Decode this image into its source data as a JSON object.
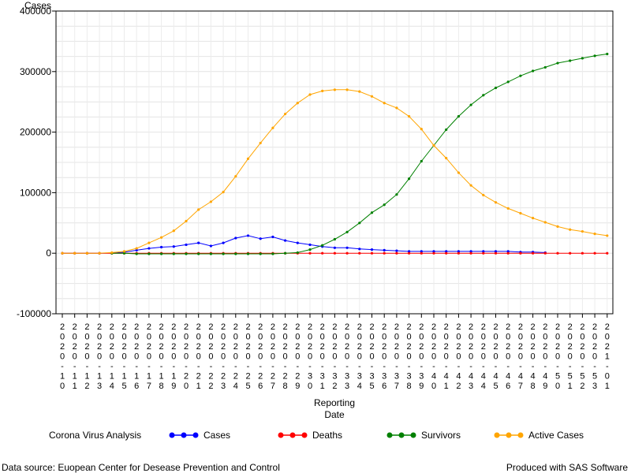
{
  "chart_data": {
    "type": "line",
    "ylabel": "Cases",
    "xlabel_lines": [
      "Reporting",
      "Date"
    ],
    "ylim": [
      -100000,
      400000
    ],
    "yticks": [
      -100000,
      0,
      100000,
      200000,
      300000,
      400000
    ],
    "ytick_labels": [
      "-100000",
      "0",
      "100000",
      "200000",
      "300000",
      "400000"
    ],
    "grid": true,
    "x": [
      "2020-10",
      "2020-11",
      "2020-12",
      "2020-13",
      "2020-14",
      "2020-15",
      "2020-16",
      "2020-17",
      "2020-18",
      "2020-19",
      "2020-20",
      "2020-21",
      "2020-22",
      "2020-23",
      "2020-24",
      "2020-25",
      "2020-26",
      "2020-27",
      "2020-28",
      "2020-29",
      "2020-30",
      "2020-31",
      "2020-32",
      "2020-33",
      "2020-34",
      "2020-35",
      "2020-36",
      "2020-37",
      "2020-38",
      "2020-39",
      "2020-40",
      "2020-41",
      "2020-42",
      "2020-43",
      "2020-44",
      "2020-45",
      "2020-46",
      "2020-47",
      "2020-48",
      "2020-49",
      "2020-50",
      "2020-51",
      "2020-52",
      "2020-53",
      "2021-01"
    ],
    "legend_title": "Corona Virus Analysis",
    "series": [
      {
        "name": "Cases",
        "color": "#0000ff",
        "values": [
          0,
          0,
          0,
          0,
          200,
          1500,
          5000,
          8000,
          10000,
          11000,
          14000,
          17000,
          12000,
          17000,
          25000,
          29000,
          24000,
          27000,
          21000,
          17000,
          14000,
          11000,
          9000,
          9000,
          7000,
          6000,
          5000,
          4000,
          3000,
          3000,
          3000,
          3000,
          3000,
          3000,
          3000,
          3000,
          3000,
          2000,
          2000,
          1000,
          null,
          null,
          null,
          null,
          null
        ]
      },
      {
        "name": "Deaths",
        "color": "#ff0000",
        "values": [
          0,
          0,
          0,
          0,
          0,
          0,
          0,
          0,
          0,
          0,
          0,
          0,
          0,
          0,
          0,
          0,
          0,
          0,
          0,
          0,
          0,
          0,
          0,
          0,
          0,
          0,
          0,
          0,
          0,
          0,
          0,
          0,
          0,
          0,
          0,
          0,
          0,
          0,
          0,
          0,
          0,
          0,
          0,
          0,
          0
        ]
      },
      {
        "name": "Survivors",
        "color": "#008000",
        "values": [
          null,
          null,
          null,
          null,
          0,
          0,
          -1000,
          -1000,
          -1000,
          -1000,
          -1000,
          -1000,
          -1000,
          -1000,
          -1000,
          -1000,
          -1000,
          -1000,
          0,
          1000,
          6000,
          13000,
          23000,
          35000,
          50000,
          67000,
          80000,
          97000,
          123000,
          152000,
          178000,
          204000,
          226000,
          245000,
          261000,
          273000,
          283000,
          293000,
          301000,
          307000,
          314000,
          318000,
          322000,
          326000,
          329000
        ]
      },
      {
        "name": "Active Cases",
        "color": "#ffa500",
        "values": [
          0,
          0,
          0,
          0,
          1000,
          3000,
          8000,
          17000,
          26000,
          37000,
          53000,
          72000,
          85000,
          101000,
          127000,
          156000,
          182000,
          207000,
          230000,
          248000,
          262000,
          268000,
          270000,
          270000,
          267000,
          259000,
          248000,
          240000,
          226000,
          205000,
          178000,
          157000,
          133000,
          112000,
          96000,
          84000,
          74000,
          66000,
          58000,
          51000,
          44000,
          39000,
          36000,
          32000,
          29000
        ]
      }
    ]
  },
  "footer": {
    "source": "Data source: Euopean Center for Desease Prevention and Control",
    "credit": "Produced with SAS Software"
  }
}
